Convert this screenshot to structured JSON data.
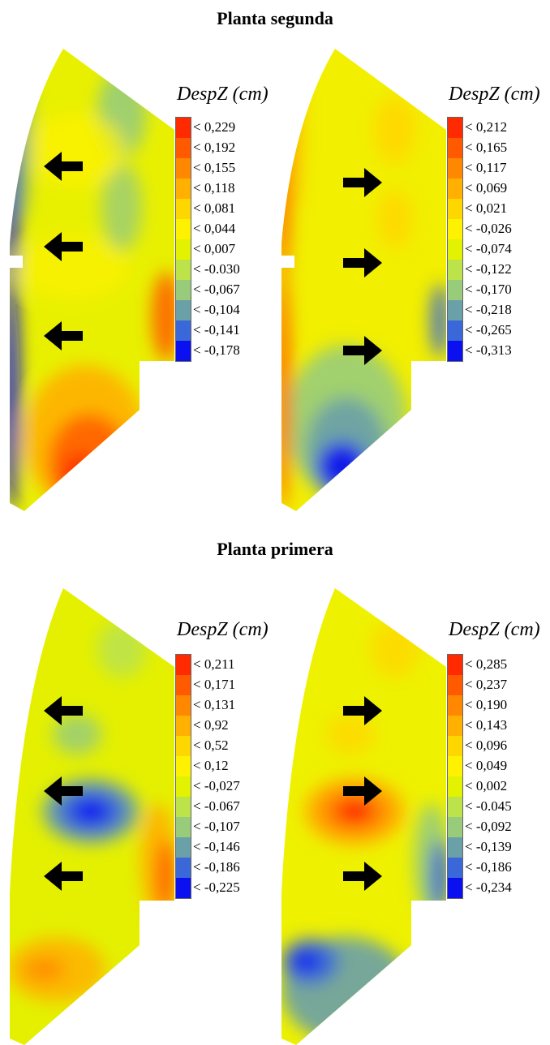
{
  "sections": [
    {
      "title": "Planta segunda"
    },
    {
      "title": "Planta primera"
    }
  ],
  "arrow_icon": "thick-arrow-icon",
  "plots": [
    {
      "id": "p1",
      "section": 0,
      "arrow_direction": "left",
      "legend_title": "DespZ (cm)",
      "legend": [
        "< 0,229",
        "< 0,192",
        "< 0,155",
        "< 0,118",
        "< 0,081",
        "< 0,044",
        "< 0,007",
        "< -0.030",
        "< -0,067",
        "< -0,104",
        "< -0,141",
        "< -0,178"
      ]
    },
    {
      "id": "p2",
      "section": 0,
      "arrow_direction": "right",
      "legend_title": "DespZ (cm)",
      "legend": [
        "< 0,212",
        "< 0,165",
        "< 0,117",
        "< 0,069",
        "< 0,021",
        "< -0,026",
        "< -0,074",
        "< -0,122",
        "< -0,170",
        "< -0,218",
        "< -0,265",
        "< -0,313"
      ]
    },
    {
      "id": "p3",
      "section": 1,
      "arrow_direction": "left",
      "legend_title": "DespZ (cm)",
      "legend": [
        "< 0,211",
        "< 0,171",
        "< 0,131",
        "< 0,92",
        "< 0,52",
        "< 0,12",
        "< -0,027",
        "< -0.067",
        "< -0,107",
        "< -0,146",
        "< -0,186",
        "< -0,225"
      ]
    },
    {
      "id": "p4",
      "section": 1,
      "arrow_direction": "right",
      "legend_title": "DespZ (cm)",
      "legend": [
        "< 0,285",
        "< 0,237",
        "< 0,190",
        "< 0,143",
        "< 0,096",
        "< 0,049",
        "< 0,002",
        "< -0.045",
        "< -0,092",
        "< -0,139",
        "< -0,186",
        "< -0,234"
      ]
    }
  ],
  "colors": {
    "legend_scale": [
      "#ff2a00",
      "#ff5a00",
      "#ff8800",
      "#ffb000",
      "#ffd700",
      "#fff200",
      "#e2f200",
      "#bde34a",
      "#98cc7a",
      "#6aa0a8",
      "#3a68d8",
      "#0a10f0"
    ]
  }
}
